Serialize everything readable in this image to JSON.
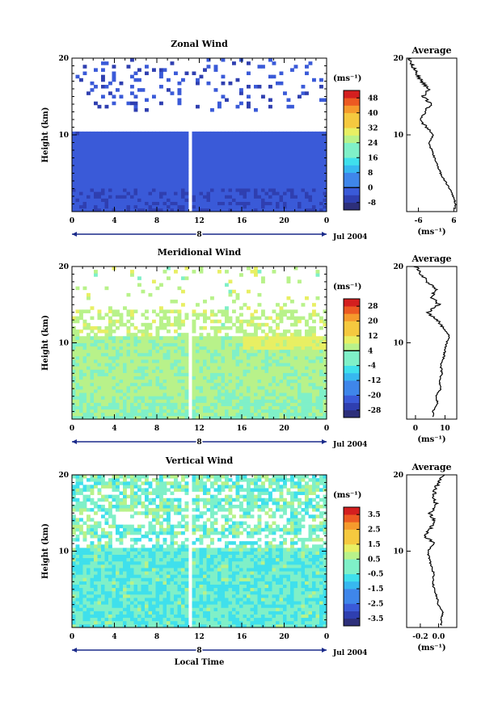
{
  "chart_data": [
    {
      "type": "heatmap",
      "title": "Zonal Wind",
      "ylabel": "Height (km)",
      "yticks": [
        "20",
        "10"
      ],
      "xticks": [
        "0",
        "4",
        "8",
        "12",
        "16",
        "20",
        "0"
      ],
      "date_day": "8",
      "date_label": "Jul 2004",
      "colorbar_unit": "(ms⁻¹)",
      "colorbar_ticks": [
        "48",
        "40",
        "32",
        "24",
        "16",
        "8",
        "0",
        "-8"
      ],
      "vmin": -12,
      "vmax": 52,
      "avg_title": "Average",
      "avg_unit": "(ms⁻¹)",
      "avg_xticks": [
        "-6",
        "6"
      ],
      "avg_xrange": [
        -10,
        7
      ],
      "avg_profile_heights": [
        1,
        2,
        3,
        4,
        5,
        6,
        7,
        8,
        9,
        10,
        11,
        12,
        13,
        14,
        15,
        16,
        17,
        18,
        19,
        20
      ],
      "avg_profile_values": [
        6.5,
        5.8,
        4.6,
        3.0,
        1.5,
        0.5,
        -0.5,
        -1.5,
        -2.5,
        -1.0,
        -3.5,
        -5.0,
        -4.0,
        -1.5,
        -4.5,
        -2.5,
        -5.0,
        -6.5,
        -8.0,
        -9.0
      ]
    },
    {
      "type": "heatmap",
      "title": "Meridional Wind",
      "ylabel": "Height (km)",
      "yticks": [
        "20",
        "10"
      ],
      "xticks": [
        "0",
        "4",
        "8",
        "12",
        "16",
        "20",
        "0"
      ],
      "date_day": "8",
      "date_label": "Jul 2004",
      "colorbar_unit": "(ms⁻¹)",
      "colorbar_ticks": [
        "28",
        "20",
        "12",
        "4",
        "-4",
        "-12",
        "-20",
        "-28"
      ],
      "vmin": -32,
      "vmax": 32,
      "avg_title": "Average",
      "avg_unit": "(ms⁻¹)",
      "avg_xticks": [
        "0",
        "10"
      ],
      "avg_xrange": [
        -3,
        14
      ],
      "avg_profile_heights": [
        1,
        2,
        3,
        4,
        5,
        6,
        7,
        8,
        9,
        10,
        11,
        12,
        13,
        14,
        15,
        16,
        17,
        18,
        19,
        20
      ],
      "avg_profile_values": [
        6.0,
        7.5,
        7.0,
        8.5,
        8.0,
        9.0,
        8.5,
        9.5,
        10.0,
        10.5,
        11.5,
        9.5,
        7.5,
        4.0,
        8.0,
        5.5,
        7.0,
        4.0,
        2.0,
        0.0
      ]
    },
    {
      "type": "heatmap",
      "title": "Vertical Wind",
      "ylabel": "Height (km)",
      "yticks": [
        "20",
        "10"
      ],
      "xticks": [
        "0",
        "4",
        "8",
        "12",
        "16",
        "20",
        "0"
      ],
      "date_day": "8",
      "date_label": "Jul 2004",
      "xlabel": "Local Time",
      "colorbar_unit": "(ms⁻¹)",
      "colorbar_ticks": [
        "3.5",
        "2.5",
        "1.5",
        "0.5",
        "-0.5",
        "-1.5",
        "-2.5",
        "-3.5"
      ],
      "vmin": -4,
      "vmax": 4,
      "avg_title": "Average",
      "avg_unit": "(ms⁻¹)",
      "avg_xticks": [
        "-0.2",
        "0.0"
      ],
      "avg_xrange": [
        -0.35,
        0.2
      ],
      "avg_profile_heights": [
        1,
        2,
        3,
        4,
        5,
        6,
        7,
        8,
        9,
        10,
        11,
        12,
        13,
        14,
        15,
        16,
        17,
        18,
        19,
        20
      ],
      "avg_profile_values": [
        0.03,
        0.05,
        0.0,
        -0.02,
        -0.05,
        -0.06,
        -0.05,
        -0.08,
        -0.1,
        -0.12,
        -0.05,
        -0.15,
        -0.08,
        -0.05,
        -0.1,
        -0.02,
        -0.06,
        -0.04,
        0.0,
        0.05
      ]
    }
  ]
}
